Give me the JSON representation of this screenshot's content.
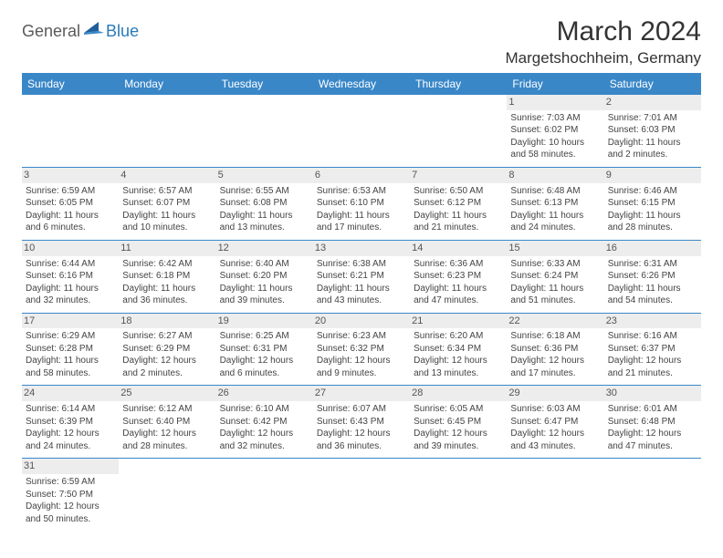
{
  "logo": {
    "general": "General",
    "blue": "Blue"
  },
  "title": "March 2024",
  "location": "Margetshochheim, Germany",
  "colors": {
    "header_bg": "#3a87c8",
    "header_text": "#ffffff",
    "daynum_bg": "#ededed",
    "border": "#3a87c8",
    "text": "#444444",
    "logo_gray": "#5a5a5a",
    "logo_blue": "#2a7ab8"
  },
  "day_headers": [
    "Sunday",
    "Monday",
    "Tuesday",
    "Wednesday",
    "Thursday",
    "Friday",
    "Saturday"
  ],
  "weeks": [
    [
      {
        "n": "",
        "lines": []
      },
      {
        "n": "",
        "lines": []
      },
      {
        "n": "",
        "lines": []
      },
      {
        "n": "",
        "lines": []
      },
      {
        "n": "",
        "lines": []
      },
      {
        "n": "1",
        "lines": [
          "Sunrise: 7:03 AM",
          "Sunset: 6:02 PM",
          "Daylight: 10 hours",
          "and 58 minutes."
        ]
      },
      {
        "n": "2",
        "lines": [
          "Sunrise: 7:01 AM",
          "Sunset: 6:03 PM",
          "Daylight: 11 hours",
          "and 2 minutes."
        ]
      }
    ],
    [
      {
        "n": "3",
        "lines": [
          "Sunrise: 6:59 AM",
          "Sunset: 6:05 PM",
          "Daylight: 11 hours",
          "and 6 minutes."
        ]
      },
      {
        "n": "4",
        "lines": [
          "Sunrise: 6:57 AM",
          "Sunset: 6:07 PM",
          "Daylight: 11 hours",
          "and 10 minutes."
        ]
      },
      {
        "n": "5",
        "lines": [
          "Sunrise: 6:55 AM",
          "Sunset: 6:08 PM",
          "Daylight: 11 hours",
          "and 13 minutes."
        ]
      },
      {
        "n": "6",
        "lines": [
          "Sunrise: 6:53 AM",
          "Sunset: 6:10 PM",
          "Daylight: 11 hours",
          "and 17 minutes."
        ]
      },
      {
        "n": "7",
        "lines": [
          "Sunrise: 6:50 AM",
          "Sunset: 6:12 PM",
          "Daylight: 11 hours",
          "and 21 minutes."
        ]
      },
      {
        "n": "8",
        "lines": [
          "Sunrise: 6:48 AM",
          "Sunset: 6:13 PM",
          "Daylight: 11 hours",
          "and 24 minutes."
        ]
      },
      {
        "n": "9",
        "lines": [
          "Sunrise: 6:46 AM",
          "Sunset: 6:15 PM",
          "Daylight: 11 hours",
          "and 28 minutes."
        ]
      }
    ],
    [
      {
        "n": "10",
        "lines": [
          "Sunrise: 6:44 AM",
          "Sunset: 6:16 PM",
          "Daylight: 11 hours",
          "and 32 minutes."
        ]
      },
      {
        "n": "11",
        "lines": [
          "Sunrise: 6:42 AM",
          "Sunset: 6:18 PM",
          "Daylight: 11 hours",
          "and 36 minutes."
        ]
      },
      {
        "n": "12",
        "lines": [
          "Sunrise: 6:40 AM",
          "Sunset: 6:20 PM",
          "Daylight: 11 hours",
          "and 39 minutes."
        ]
      },
      {
        "n": "13",
        "lines": [
          "Sunrise: 6:38 AM",
          "Sunset: 6:21 PM",
          "Daylight: 11 hours",
          "and 43 minutes."
        ]
      },
      {
        "n": "14",
        "lines": [
          "Sunrise: 6:36 AM",
          "Sunset: 6:23 PM",
          "Daylight: 11 hours",
          "and 47 minutes."
        ]
      },
      {
        "n": "15",
        "lines": [
          "Sunrise: 6:33 AM",
          "Sunset: 6:24 PM",
          "Daylight: 11 hours",
          "and 51 minutes."
        ]
      },
      {
        "n": "16",
        "lines": [
          "Sunrise: 6:31 AM",
          "Sunset: 6:26 PM",
          "Daylight: 11 hours",
          "and 54 minutes."
        ]
      }
    ],
    [
      {
        "n": "17",
        "lines": [
          "Sunrise: 6:29 AM",
          "Sunset: 6:28 PM",
          "Daylight: 11 hours",
          "and 58 minutes."
        ]
      },
      {
        "n": "18",
        "lines": [
          "Sunrise: 6:27 AM",
          "Sunset: 6:29 PM",
          "Daylight: 12 hours",
          "and 2 minutes."
        ]
      },
      {
        "n": "19",
        "lines": [
          "Sunrise: 6:25 AM",
          "Sunset: 6:31 PM",
          "Daylight: 12 hours",
          "and 6 minutes."
        ]
      },
      {
        "n": "20",
        "lines": [
          "Sunrise: 6:23 AM",
          "Sunset: 6:32 PM",
          "Daylight: 12 hours",
          "and 9 minutes."
        ]
      },
      {
        "n": "21",
        "lines": [
          "Sunrise: 6:20 AM",
          "Sunset: 6:34 PM",
          "Daylight: 12 hours",
          "and 13 minutes."
        ]
      },
      {
        "n": "22",
        "lines": [
          "Sunrise: 6:18 AM",
          "Sunset: 6:36 PM",
          "Daylight: 12 hours",
          "and 17 minutes."
        ]
      },
      {
        "n": "23",
        "lines": [
          "Sunrise: 6:16 AM",
          "Sunset: 6:37 PM",
          "Daylight: 12 hours",
          "and 21 minutes."
        ]
      }
    ],
    [
      {
        "n": "24",
        "lines": [
          "Sunrise: 6:14 AM",
          "Sunset: 6:39 PM",
          "Daylight: 12 hours",
          "and 24 minutes."
        ]
      },
      {
        "n": "25",
        "lines": [
          "Sunrise: 6:12 AM",
          "Sunset: 6:40 PM",
          "Daylight: 12 hours",
          "and 28 minutes."
        ]
      },
      {
        "n": "26",
        "lines": [
          "Sunrise: 6:10 AM",
          "Sunset: 6:42 PM",
          "Daylight: 12 hours",
          "and 32 minutes."
        ]
      },
      {
        "n": "27",
        "lines": [
          "Sunrise: 6:07 AM",
          "Sunset: 6:43 PM",
          "Daylight: 12 hours",
          "and 36 minutes."
        ]
      },
      {
        "n": "28",
        "lines": [
          "Sunrise: 6:05 AM",
          "Sunset: 6:45 PM",
          "Daylight: 12 hours",
          "and 39 minutes."
        ]
      },
      {
        "n": "29",
        "lines": [
          "Sunrise: 6:03 AM",
          "Sunset: 6:47 PM",
          "Daylight: 12 hours",
          "and 43 minutes."
        ]
      },
      {
        "n": "30",
        "lines": [
          "Sunrise: 6:01 AM",
          "Sunset: 6:48 PM",
          "Daylight: 12 hours",
          "and 47 minutes."
        ]
      }
    ],
    [
      {
        "n": "31",
        "lines": [
          "Sunrise: 6:59 AM",
          "Sunset: 7:50 PM",
          "Daylight: 12 hours",
          "and 50 minutes."
        ]
      },
      {
        "n": "",
        "lines": []
      },
      {
        "n": "",
        "lines": []
      },
      {
        "n": "",
        "lines": []
      },
      {
        "n": "",
        "lines": []
      },
      {
        "n": "",
        "lines": []
      },
      {
        "n": "",
        "lines": []
      }
    ]
  ]
}
